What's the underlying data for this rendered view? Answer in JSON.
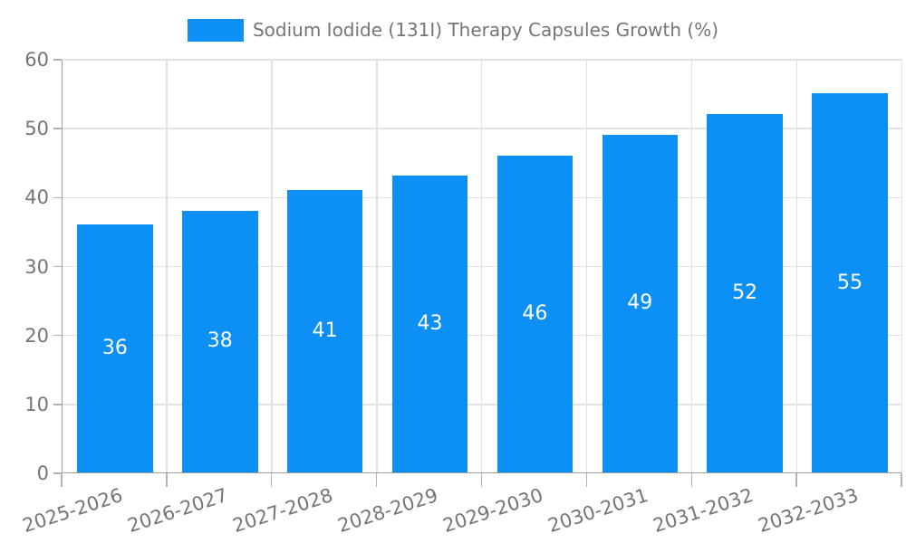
{
  "legend": {
    "label": "Sodium Iodide (131I) Therapy Capsules Growth (%)"
  },
  "chart_data": {
    "type": "bar",
    "title": "Sodium Iodide (131I) Therapy Capsules Growth (%)",
    "categories": [
      "2025-2026",
      "2026-2027",
      "2027-2028",
      "2028-2029",
      "2029-2030",
      "2030-2031",
      "2031-2032",
      "2032-2033"
    ],
    "values": [
      36,
      38,
      41,
      43,
      46,
      49,
      52,
      55
    ],
    "xlabel": "",
    "ylabel": "",
    "ylim": [
      0,
      60
    ],
    "yticks": [
      0,
      10,
      20,
      30,
      40,
      50,
      60
    ],
    "grid": true,
    "legend_position": "top-center",
    "bar_color": "#0d90f5",
    "value_label_color": "#ffffff"
  },
  "colors": {
    "background": "#ffffff",
    "bar": "#0d90f5",
    "grid": "#e2e2e2",
    "axis": "#9e9e9e",
    "tick": "#b3b3b3",
    "tick_label_text": "#757575",
    "value_label": "#ffffff"
  }
}
